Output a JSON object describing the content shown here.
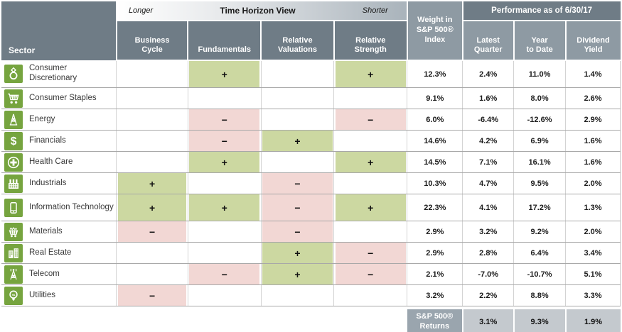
{
  "header": {
    "sector_label": "Sector",
    "time_horizon": {
      "longer_label": "Longer",
      "title": "Time Horizon View",
      "shorter_label": "Shorter"
    },
    "weight_header": "Weight in\nS&P 500®\nIndex",
    "performance_title": "Performance as of 6/30/17",
    "factor_columns": [
      "Business\nCycle",
      "Fundamentals",
      "Relative\nValuations",
      "Relative\nStrength"
    ],
    "performance_columns": [
      "Latest\nQuarter",
      "Year\nto Date",
      "Dividend\nYield"
    ]
  },
  "rows": [
    {
      "name": "Consumer Discretionary",
      "icon": "ring-icon",
      "signs": [
        "",
        "+",
        "",
        "+"
      ],
      "weight": "12.3%",
      "latest_quarter": "2.4%",
      "year_to_date": "11.0%",
      "dividend_yield": "1.4%"
    },
    {
      "name": "Consumer Staples",
      "icon": "shopping-cart-icon",
      "signs": [
        "",
        "",
        "",
        ""
      ],
      "weight": "9.1%",
      "latest_quarter": "1.6%",
      "year_to_date": "8.0%",
      "dividend_yield": "2.6%"
    },
    {
      "name": "Energy",
      "icon": "oil-derrick-icon",
      "signs": [
        "",
        "−",
        "",
        "−"
      ],
      "weight": "6.0%",
      "latest_quarter": "-6.4%",
      "year_to_date": "-12.6%",
      "dividend_yield": "2.9%"
    },
    {
      "name": "Financials",
      "icon": "dollar-icon",
      "signs": [
        "",
        "−",
        "+",
        ""
      ],
      "weight": "14.6%",
      "latest_quarter": "4.2%",
      "year_to_date": "6.9%",
      "dividend_yield": "1.6%"
    },
    {
      "name": "Health Care",
      "icon": "health-cross-icon",
      "signs": [
        "",
        "+",
        "",
        "+"
      ],
      "weight": "14.5%",
      "latest_quarter": "7.1%",
      "year_to_date": "16.1%",
      "dividend_yield": "1.6%"
    },
    {
      "name": "Industrials",
      "icon": "factory-icon",
      "signs": [
        "+",
        "",
        "−",
        ""
      ],
      "weight": "10.3%",
      "latest_quarter": "4.7%",
      "year_to_date": "9.5%",
      "dividend_yield": "2.0%"
    },
    {
      "name": "Information Technology",
      "icon": "smartphone-icon",
      "signs": [
        "+",
        "+",
        "−",
        "+"
      ],
      "weight": "22.3%",
      "latest_quarter": "4.1%",
      "year_to_date": "17.2%",
      "dividend_yield": "1.3%"
    },
    {
      "name": "Materials",
      "icon": "mine-cart-icon",
      "signs": [
        "−",
        "",
        "−",
        ""
      ],
      "weight": "2.9%",
      "latest_quarter": "3.2%",
      "year_to_date": "9.2%",
      "dividend_yield": "2.0%"
    },
    {
      "name": "Real Estate",
      "icon": "buildings-icon",
      "signs": [
        "",
        "",
        "+",
        "−"
      ],
      "weight": "2.9%",
      "latest_quarter": "2.8%",
      "year_to_date": "6.4%",
      "dividend_yield": "3.4%"
    },
    {
      "name": "Telecom",
      "icon": "radio-tower-icon",
      "signs": [
        "",
        "−",
        "+",
        "−"
      ],
      "weight": "2.1%",
      "latest_quarter": "-7.0%",
      "year_to_date": "-10.7%",
      "dividend_yield": "5.1%"
    },
    {
      "name": "Utilities",
      "icon": "lightbulb-icon",
      "signs": [
        "−",
        "",
        "",
        ""
      ],
      "weight": "3.2%",
      "latest_quarter": "2.2%",
      "year_to_date": "8.8%",
      "dividend_yield": "3.3%"
    }
  ],
  "footer": {
    "label": "S&P 500®\nReturns",
    "values": [
      "3.1%",
      "9.3%",
      "1.9%"
    ]
  },
  "colors": {
    "header_dark": "#6f7c86",
    "header_light": "#8e9aa3",
    "positive_bg": "#ccd8a1",
    "negative_bg": "#f2d7d4",
    "icon_green": "#76a43f",
    "footer_label_bg": "#9aa5ae",
    "footer_value_bg": "#c4c9ce"
  },
  "chart_data": {
    "type": "table",
    "title": "Sector Time Horizon View and Performance as of 6/30/17",
    "columns": [
      "Sector",
      "Business Cycle",
      "Fundamentals",
      "Relative Valuations",
      "Relative Strength",
      "Weight in S&P 500 Index",
      "Latest Quarter",
      "Year to Date",
      "Dividend Yield"
    ],
    "rows": [
      [
        "Consumer Discretionary",
        "",
        "+",
        "",
        "+",
        "12.3%",
        "2.4%",
        "11.0%",
        "1.4%"
      ],
      [
        "Consumer Staples",
        "",
        "",
        "",
        "",
        "9.1%",
        "1.6%",
        "8.0%",
        "2.6%"
      ],
      [
        "Energy",
        "",
        "−",
        "",
        "−",
        "6.0%",
        "-6.4%",
        "-12.6%",
        "2.9%"
      ],
      [
        "Financials",
        "",
        "−",
        "+",
        "",
        "14.6%",
        "4.2%",
        "6.9%",
        "1.6%"
      ],
      [
        "Health Care",
        "",
        "+",
        "",
        "+",
        "14.5%",
        "7.1%",
        "16.1%",
        "1.6%"
      ],
      [
        "Industrials",
        "+",
        "",
        "−",
        "",
        "10.3%",
        "4.7%",
        "9.5%",
        "2.0%"
      ],
      [
        "Information Technology",
        "+",
        "+",
        "−",
        "+",
        "22.3%",
        "4.1%",
        "17.2%",
        "1.3%"
      ],
      [
        "Materials",
        "−",
        "",
        "−",
        "",
        "2.9%",
        "3.2%",
        "9.2%",
        "2.0%"
      ],
      [
        "Real Estate",
        "",
        "",
        "+",
        "−",
        "2.9%",
        "2.8%",
        "6.4%",
        "3.4%"
      ],
      [
        "Telecom",
        "",
        "−",
        "+",
        "−",
        "2.1%",
        "-7.0%",
        "-10.7%",
        "5.1%"
      ],
      [
        "Utilities",
        "−",
        "",
        "",
        "",
        "3.2%",
        "2.2%",
        "8.8%",
        "3.3%"
      ],
      [
        "S&P 500 Returns",
        "",
        "",
        "",
        "",
        "",
        "3.1%",
        "9.3%",
        "1.9%"
      ]
    ]
  }
}
